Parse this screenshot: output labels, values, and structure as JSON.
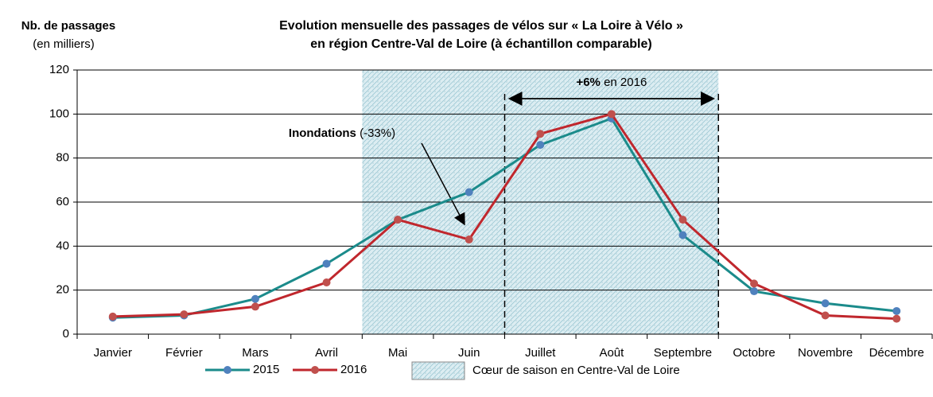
{
  "chart_data": {
    "type": "line",
    "title": [
      "Evolution mensuelle des passages de vélos sur « La Loire à Vélo »",
      "en région Centre-Val de Loire (à échantillon comparable)"
    ],
    "y_axis_label": [
      "Nb. de passages",
      "(en milliers)"
    ],
    "categories": [
      "Janvier",
      "Février",
      "Mars",
      "Avril",
      "Mai",
      "Juin",
      "Juillet",
      "Août",
      "Septembre",
      "Octobre",
      "Novembre",
      "Décembre"
    ],
    "series": [
      {
        "name": "2015",
        "color": "#1b8b8b",
        "marker_color": "#4f81bd",
        "values": [
          7.5,
          8.5,
          16,
          32,
          52,
          64.5,
          86,
          98,
          45,
          19.5,
          14,
          10.5
        ]
      },
      {
        "name": "2016",
        "color": "#c0272d",
        "marker_color": "#c0504d",
        "values": [
          8,
          9,
          12.5,
          23.5,
          52,
          43,
          91,
          100,
          52,
          23,
          8.5,
          7
        ]
      }
    ],
    "ylim": [
      0,
      120
    ],
    "yticks": [
      0,
      20,
      40,
      60,
      80,
      100,
      120
    ],
    "grid": true,
    "shaded_label": "Cœur de saison en Centre-Val de Loire",
    "annotations": {
      "season": {
        "bold": "+6%",
        "text": " en 2016"
      },
      "flood": {
        "bold": "Inondations",
        "text": " (-33%)"
      }
    }
  }
}
